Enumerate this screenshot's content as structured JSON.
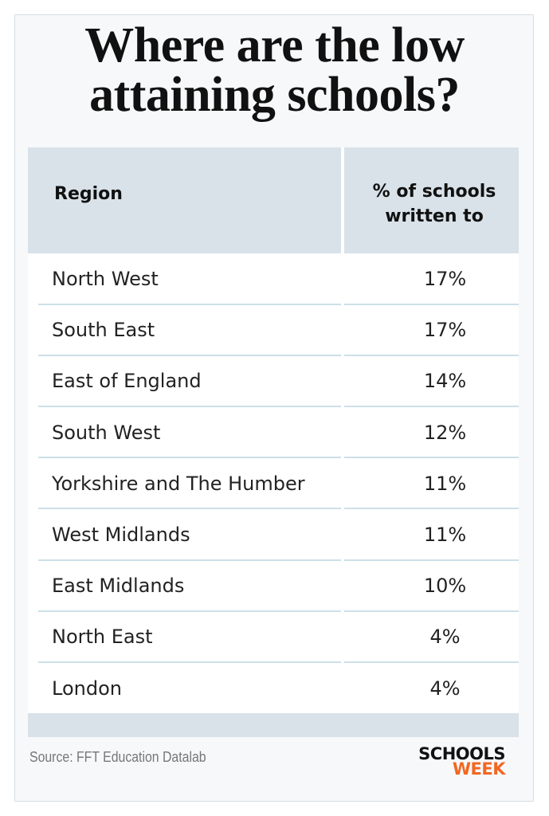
{
  "header": {
    "title": "Where are the low attaining schools?"
  },
  "table": {
    "columns": [
      "Region",
      "% of schools written to"
    ],
    "rows": [
      [
        "North West",
        "17%"
      ],
      [
        "South East",
        "17%"
      ],
      [
        "East of England",
        "14%"
      ],
      [
        "South West",
        "12%"
      ],
      [
        "Yorkshire and The Humber",
        "11%"
      ],
      [
        "West Midlands",
        "11%"
      ],
      [
        "East Midlands",
        "10%"
      ],
      [
        "North East",
        "4%"
      ],
      [
        "London",
        "4%"
      ]
    ]
  },
  "footer": {
    "source": "Source: FFT Education Datalab",
    "logo": [
      "SCHOOLS",
      "WEEK"
    ]
  }
}
